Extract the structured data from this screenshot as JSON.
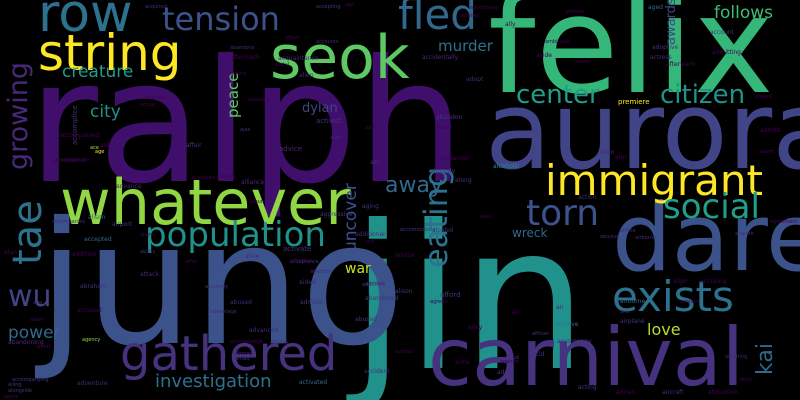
{
  "background": "#000000",
  "words": {
    "ralph": "ralph",
    "felix": "felix",
    "jin": "jin",
    "juno": "juno",
    "aurora": "aurora",
    "dare": "dare",
    "carnival": "carnival",
    "whatever": "whatever",
    "seok": "seok",
    "string": "string",
    "immigrant": "immigrant",
    "gathered": "gathered",
    "row": "row",
    "fled": "fled",
    "tension": "tension",
    "population": "population",
    "exists": "exists",
    "torn": "torn",
    "social": "social",
    "center": "center",
    "citizen": "citizen",
    "tae": "tae",
    "growing": "growing",
    "wu": "wu",
    "eating": "eating",
    "kai": "kai",
    "creature": "creature",
    "murder": "murder",
    "peace": "peace",
    "investigation": "investigation",
    "uncover": "uncover",
    "away": "away",
    "war": "war",
    "power": "power",
    "love": "love",
    "follows": "follows",
    "awards": "awards",
    "city": "city",
    "dylan": "dylan",
    "wreck": "wreck",
    "aged": "aged",
    "premiere": "premiere",
    "adoptive": "adoptive",
    "actress": "actress",
    "accusing": "accusing",
    "admits": "admits",
    "air": "air",
    "accomplice": "accomplice",
    "abandon": "abandon",
    "acquaintance": "acquaintance",
    "activist": "activist",
    "advice": "advice",
    "alliance": "alliance",
    "aftermath": "aftermath",
    "alien": "alien",
    "airport": "airport",
    "adventure": "adventure",
    "abandoned": "abandoned",
    "abused": "abused",
    "activated": "activated",
    "action": "action",
    "alison": "alison",
    "aircraft": "aircraft",
    "acting": "acting",
    "abduction": "abduction",
    "accidentally": "accidentally",
    "adopt": "adopt",
    "abuse": "abuse",
    "affair": "affair",
    "alexander": "alexander",
    "account": "account",
    "addition": "addition",
    "accompanied": "accompanied",
    "airplane": "airplane",
    "additional": "additional",
    "accompany": "accompany",
    "acid": "acid",
    "alive": "alive",
    "afford": "afford",
    "alley": "alley",
    "aging": "aging",
    "aggressive": "aggressive",
    "abraham": "abraham",
    "accomplished": "accomplished",
    "alarm": "alarm",
    "abandoning": "abandoning",
    "accepted": "accepted",
    "ability": "ability",
    "absent": "absent",
    "adrian": "adrian",
    "african": "african",
    "achieve": "achieve",
    "admitted": "admitted",
    "abruptly": "abruptly",
    "ahead": "ahead",
    "alcoholic": "alcoholic",
    "adult": "adult",
    "advance": "advance",
    "accident": "accident",
    "album": "album",
    "admitting": "admitting",
    "align": "align",
    "ally": "ally",
    "add": "add",
    "aside": "aside",
    "activate": "activate",
    "attack": "attack",
    "aided": "aided",
    "aisle": "aisle",
    "advanced": "advanced",
    "accusing2": "accusing",
    "afterward": "afterward",
    "aim": "aim",
    "abby": "abby",
    "ace": "ace",
    "aided2": "aided",
    "aid": "aid",
    "alongside": "alongside",
    "accompanies": "accompanies",
    "acquitted": "acquitted",
    "accused": "accused",
    "acknowledge": "acknowledge",
    "agency": "agency",
    "agreed": "agreed",
    "admires": "admires",
    "affection": "affection",
    "afraid": "afraid",
    "abbey": "abbey",
    "admiral": "admiral",
    "abroad": "abroad",
    "along": "along",
    "aloud": "aloud",
    "academy": "academy",
    "affection2": "affection",
    "adam": "adam",
    "agenda": "agenda",
    "acceptance": "acceptance",
    "albert": "albert",
    "abusive": "abusive",
    "airline": "airline",
    "agree": "agree",
    "abe": "abe",
    "agreement": "agreement",
    "acquire": "acquire",
    "act": "act",
    "accompanying": "accompanying",
    "actor": "actor",
    "ajax": "ajax",
    "alan": "alan",
    "abandons": "abandons",
    "abdul": "abdul",
    "affect": "affect",
    "accounts": "accounts",
    "amanda": "amanda",
    "ago": "ago",
    "acquired": "acquired",
    "airborne": "airborne",
    "accepting": "accepting",
    "age": "age",
    "actual": "actual",
    "admiring": "admiring",
    "aliens": "aliens",
    "ailing": "ailing",
    "attend": "attend",
    "advertising": "advertising",
    "abilities": "abilities",
    "ambitious": "ambitious",
    "air2": "air",
    "airs": "airs",
    "accompany2": "accompanies",
    "alison2": "alison",
    "alien2": "alien",
    "accommodate": "accommodate",
    "act2": "act",
    "abused2": "abused",
    "advise": "advise",
    "actress2": "actress",
    "achieve2": "achieve",
    "airborne2": "airborne",
    "affair2": "affair",
    "alcohol": "alcohol",
    "aims": "aims",
    "advantage": "advantage",
    "abilities2": "abilities"
  }
}
